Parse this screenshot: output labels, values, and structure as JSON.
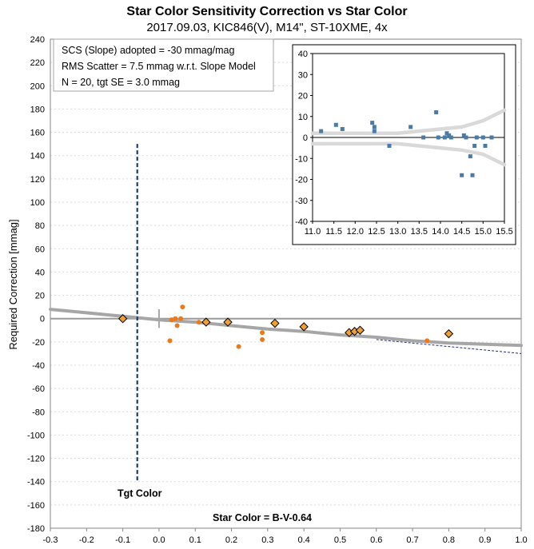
{
  "chart_data": [
    {
      "type": "scatter",
      "title": "Star Color Sensitivity Correction vs Star Color",
      "subtitle": "2017.09.03, KIC846(V), M14\", ST-10XME, 4x",
      "xlabel": "Star Color = B-V-0.64",
      "ylabel": "Required Correction [mmag]",
      "xlim": [
        -0.3,
        1.0
      ],
      "ylim": [
        -180,
        240
      ],
      "xticks": [
        "-0.3",
        "-0.2",
        "-0.1",
        "0.0",
        "0.1",
        "0.2",
        "0.3",
        "0.4",
        "0.5",
        "0.6",
        "0.7",
        "0.8",
        "0.9",
        "1.0"
      ],
      "yticks": [
        "-180",
        "-160",
        "-140",
        "-120",
        "-100",
        "-80",
        "-60",
        "-40",
        "-20",
        "0",
        "20",
        "40",
        "60",
        "80",
        "100",
        "120",
        "140",
        "160",
        "180",
        "200",
        "220",
        "240"
      ],
      "grid": true,
      "annotations": {
        "box_lines": [
          "SCS (Slope) adopted  =  -30 mmag/mag",
          "RMS Scatter = 7.5 mmag w.r.t. Slope Model",
          "N = 20,  tgt SE = 3.0 mmag"
        ],
        "target_label": "Tgt Color",
        "target_x": -0.06
      },
      "colors": {
        "points": "#E87B1E",
        "diamonds": "#F0A030",
        "diamond_edge": "#000000",
        "target_line": "#1F3A6E",
        "target_label": "#1F3A8C",
        "model_curve": "#A6A6A6",
        "slope_line": "#1F2E7A"
      },
      "series": [
        {
          "kind": "individual-stars",
          "x": [
            0.03,
            0.035,
            0.045,
            0.05,
            0.06,
            0.065,
            0.11,
            0.22,
            0.285,
            0.285,
            0.74
          ],
          "y": [
            -19,
            -1,
            0,
            -6,
            0,
            10,
            -3,
            -24,
            -12,
            -18,
            -19
          ]
        },
        {
          "kind": "binned-averages",
          "x": [
            -0.1,
            0.13,
            0.19,
            0.32,
            0.4,
            0.525,
            0.54,
            0.555,
            0.8
          ],
          "y": [
            0,
            -3,
            -3,
            -4,
            -7,
            -12,
            -11,
            -10,
            -13
          ]
        },
        {
          "kind": "model-curve",
          "x": [
            -0.3,
            -0.2,
            -0.1,
            0.0,
            0.1,
            0.2,
            0.3,
            0.4,
            0.5,
            0.6,
            0.7,
            0.8,
            0.9,
            1.0
          ],
          "y": [
            8,
            5,
            2,
            -1,
            -3,
            -6,
            -9,
            -11,
            -14,
            -16,
            -19,
            -21,
            -22,
            -23
          ]
        },
        {
          "kind": "slope-line",
          "x": [
            0.6,
            1.0
          ],
          "y": [
            -18,
            -30
          ]
        }
      ]
    },
    {
      "type": "scatter",
      "title": "",
      "xlim": [
        11.0,
        15.5
      ],
      "ylim": [
        -40,
        40
      ],
      "xticks": [
        "11.0",
        "11.5",
        "12.0",
        "12.5",
        "13.0",
        "13.5",
        "14.0",
        "14.5",
        "15.0",
        "15.5"
      ],
      "yticks": [
        "-40",
        "-30",
        "-20",
        "-10",
        "0",
        "10",
        "20",
        "30",
        "40"
      ],
      "grid": false,
      "colors": {
        "points": "#4A7BA6",
        "envelope": "#D9D9D9"
      },
      "series": [
        {
          "kind": "residuals",
          "x": [
            11.2,
            11.55,
            11.7,
            12.4,
            12.45,
            12.45,
            12.8,
            13.3,
            13.6,
            13.9,
            13.95,
            14.1,
            14.15,
            14.2,
            14.25,
            14.5,
            14.55,
            14.6,
            14.7,
            14.75,
            14.8,
            14.85,
            15.0,
            15.05,
            15.2
          ],
          "y": [
            3,
            6,
            4,
            7,
            5,
            3,
            -4,
            5,
            0,
            12,
            0,
            0,
            2,
            1,
            0,
            -18,
            1,
            0,
            -9,
            -18,
            -4,
            0,
            0,
            -4,
            0
          ]
        },
        {
          "kind": "envelope-upper",
          "x": [
            11.0,
            12.0,
            13.0,
            13.5,
            14.0,
            14.5,
            15.0,
            15.5
          ],
          "y": [
            2,
            2,
            2,
            3,
            4,
            5,
            8,
            13
          ]
        },
        {
          "kind": "envelope-lower",
          "x": [
            11.0,
            12.0,
            13.0,
            13.5,
            14.0,
            14.5,
            15.0,
            15.5
          ],
          "y": [
            -3,
            -3,
            -3,
            -4,
            -5,
            -6,
            -8,
            -13
          ]
        }
      ]
    }
  ]
}
